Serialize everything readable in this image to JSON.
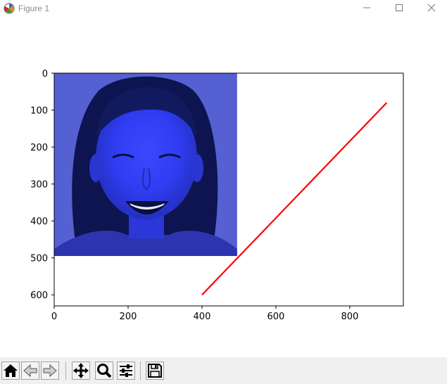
{
  "window": {
    "title": "Figure 1",
    "controls": [
      "minimize",
      "maximize",
      "close"
    ]
  },
  "toolbar": {
    "buttons": [
      {
        "name": "home",
        "icon": "home-icon"
      },
      {
        "name": "back",
        "icon": "back-arrow-icon"
      },
      {
        "name": "forward",
        "icon": "forward-arrow-icon"
      },
      {
        "name": "pan",
        "icon": "move-icon"
      },
      {
        "name": "zoom",
        "icon": "zoom-icon"
      },
      {
        "name": "configure-subplots",
        "icon": "sliders-icon"
      },
      {
        "name": "save",
        "icon": "save-icon"
      }
    ]
  },
  "chart_data": {
    "type": "line",
    "x": [
      400,
      900
    ],
    "y": [
      600,
      80
    ],
    "series": [
      {
        "x": [
          400,
          900
        ],
        "y": [
          600,
          80
        ],
        "color": "#ff0000"
      }
    ],
    "xlim": [
      0,
      945
    ],
    "ylim": [
      630,
      0
    ],
    "x_ticks": [
      0,
      200,
      400,
      600,
      800
    ],
    "x_tick_labels": [
      "0",
      "200",
      "400",
      "600",
      "800"
    ],
    "y_ticks": [
      0,
      100,
      200,
      300,
      400,
      500,
      600
    ],
    "y_tick_labels": [
      "0",
      "100",
      "200",
      "300",
      "400",
      "500",
      "600"
    ],
    "image_extent": {
      "x": [
        0,
        495
      ],
      "y": [
        0,
        495
      ]
    },
    "image_tint": "#4a55d8",
    "grid": false
  }
}
